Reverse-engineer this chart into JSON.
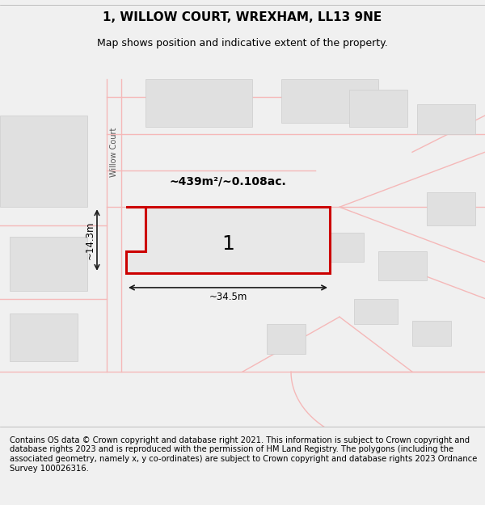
{
  "title": "1, WILLOW COURT, WREXHAM, LL13 9NE",
  "subtitle": "Map shows position and indicative extent of the property.",
  "footer": "Contains OS data © Crown copyright and database right 2021. This information is subject to Crown copyright and database rights 2023 and is reproduced with the permission of HM Land Registry. The polygons (including the associated geometry, namely x, y co-ordinates) are subject to Crown copyright and database rights 2023 Ordnance Survey 100026316.",
  "area_text": "~439m²/~0.108ac.",
  "width_text": "~34.5m",
  "height_text": "~14.3m",
  "plot_number": "1",
  "street_name": "Willow Court",
  "bg_color": "#f5f5f5",
  "map_bg": "#ffffff",
  "plot_fill": "#e8e8e8",
  "plot_edge": "#cc0000",
  "road_color": "#f5b8b8",
  "building_fill": "#e0e0e0",
  "building_edge": "#cccccc",
  "dim_line_color": "#1a1a1a",
  "title_fontsize": 11,
  "subtitle_fontsize": 9,
  "footer_fontsize": 7.2
}
